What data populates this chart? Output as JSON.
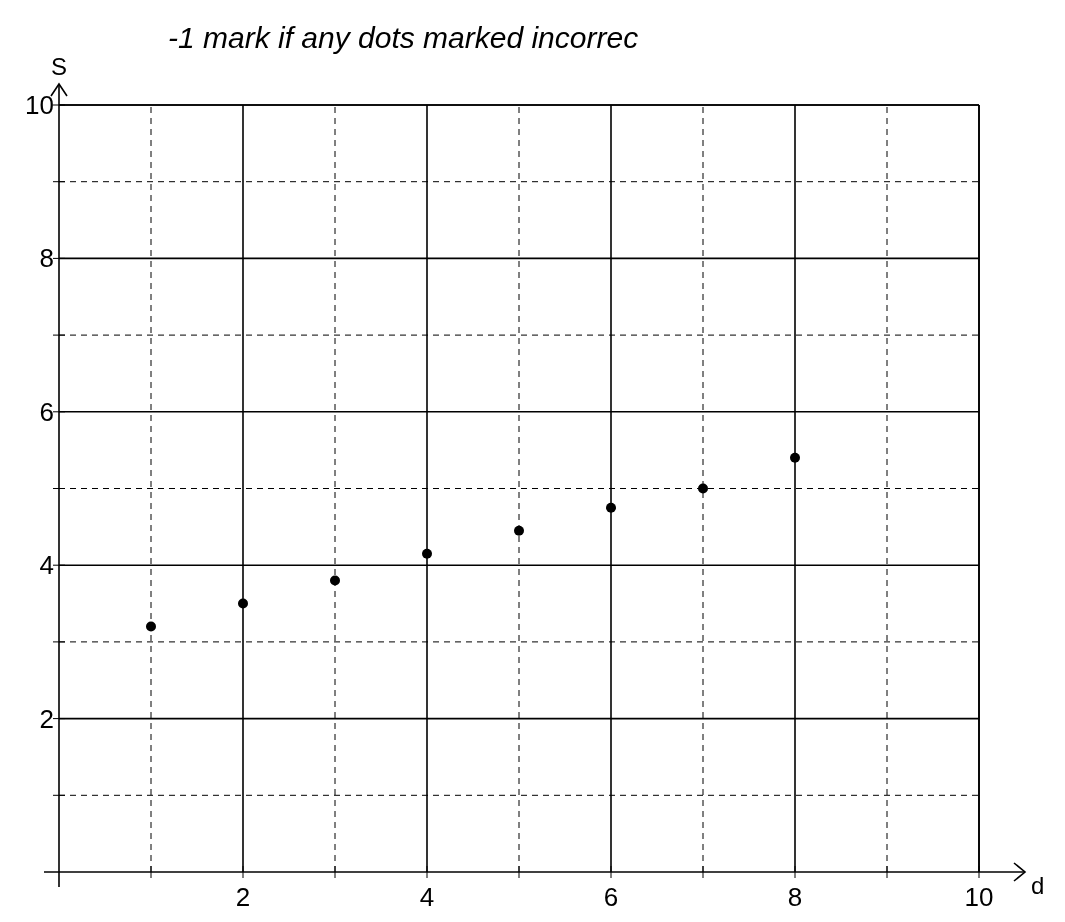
{
  "chart_data": {
    "type": "scatter",
    "annotations": [
      "-1 mark if any dots marked incorrec"
    ],
    "xlabel": "d",
    "ylabel": "S",
    "x": [
      1,
      2,
      3,
      4,
      5,
      6,
      7,
      8
    ],
    "values": [
      3.2,
      3.5,
      3.8,
      4.15,
      4.45,
      4.75,
      5.0,
      5.4
    ],
    "color": "#000000",
    "marker": "circle",
    "grid": true,
    "xlim": [
      0,
      10
    ],
    "ylim": [
      0,
      10
    ],
    "xticks": [
      {
        "value": 1,
        "label": null
      },
      2,
      {
        "value": 3,
        "label": null
      },
      4,
      {
        "value": 5,
        "label": null
      },
      6,
      {
        "value": 7,
        "label": null
      },
      8,
      {
        "value": 9,
        "label": null
      },
      10
    ],
    "yticks": [
      {
        "value": 1,
        "label": null
      },
      2,
      {
        "value": 3,
        "label": null
      },
      4,
      {
        "value": 5,
        "label": null
      },
      6,
      {
        "value": 7,
        "label": null
      },
      8,
      {
        "value": 9,
        "label": null
      },
      10
    ]
  }
}
